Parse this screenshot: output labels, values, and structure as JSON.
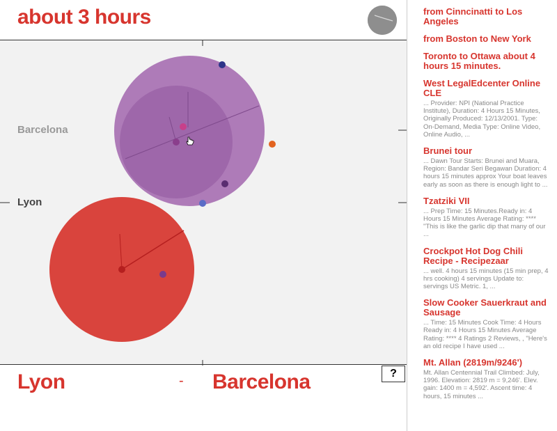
{
  "header": {
    "headline": "about 3 hours",
    "help_label": "?"
  },
  "viz": {
    "city_a_label": "Barcelona",
    "city_b_label": "Lyon",
    "colors": {
      "purple_bubble": "#9b5aa8",
      "red_bubble": "#d7352e",
      "panel_bg": "#f2f2f2"
    }
  },
  "footer": {
    "from_city": "Lyon",
    "separator": "-",
    "to_city": "Barcelona"
  },
  "results": [
    {
      "title": "from Cinncinatti to Los Angeles",
      "snippet": ""
    },
    {
      "title": "from Boston to New York",
      "snippet": ""
    },
    {
      "title": "Toronto to Ottawa about 4 hours 15 minutes.",
      "snippet": ""
    },
    {
      "title": "West LegalEdcenter Online CLE",
      "snippet": "... Provider: NPI (National Practice Institute), Duration: 4 Hours 15 Minutes, Originally Produced: 12/13/2001. Type: On-Demand, Media Type: Online Video, Online Audio, ..."
    },
    {
      "title": "Brunei tour",
      "snippet": "... Dawn Tour Starts: Brunei and Muara, Region: Bandar Seri Begawan Duration: 4 hours 15 minutes approx Your boat leaves early as soon as there is enough light to ..."
    },
    {
      "title": "Tzatziki VII",
      "snippet": "... Prep Time: 15 Minutes.Ready in: 4 Hours 15 Minutes Average Rating: **** \"This is like the garlic dip that many of our ..."
    },
    {
      "title": "Crockpot Hot Dog Chili Recipe - Recipezaar",
      "snippet": "... well. 4 hours 15 minutes (15 min prep, 4 hrs cooking) 4 servings Update to: servings US Metric. 1, ..."
    },
    {
      "title": "Slow Cooker Sauerkraut and Sausage",
      "snippet": "... Time: 15 Minutes Cook Time: 4 Hours Ready in: 4 Hours 15 Minutes Average Rating: **** 4 Ratings 2 Reviews, , \"Here's an old recipe I have used ..."
    },
    {
      "title": "Mt. Allan (2819m/9246')",
      "snippet": "Mt. Allan Centennial Trail Climbed: July, 1996. Elevation: 2819 m = 9,246'. Elev. gain: 1400 m = 4,592'. Ascent time: 4 hours, 15 minutes ..."
    }
  ]
}
